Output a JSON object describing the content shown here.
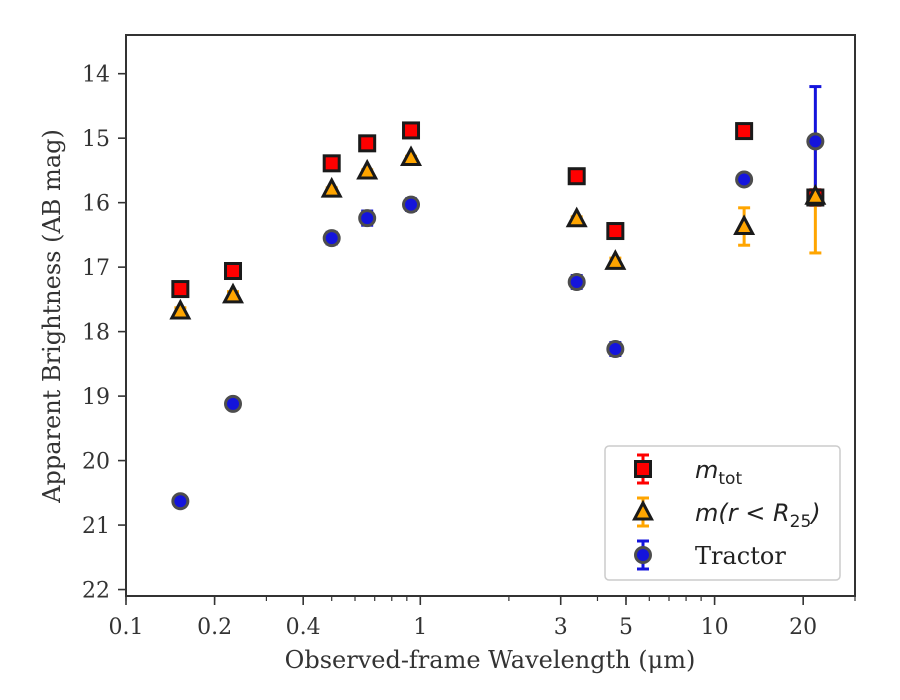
{
  "chart_data": {
    "type": "scatter",
    "xlabel": "Observed-frame Wavelength (μm)",
    "ylabel": "Apparent Brightness (AB mag)",
    "x_scale": "log",
    "xlim": [
      0.1,
      30
    ],
    "ylim": [
      22.1,
      13.4
    ],
    "y_inverted": true,
    "x_ticks": [
      0.1,
      0.2,
      0.4,
      1,
      3,
      5,
      10,
      20
    ],
    "x_tick_labels": [
      "0.1",
      "0.2",
      "0.4",
      "1",
      "3",
      "5",
      "10",
      "20"
    ],
    "y_ticks": [
      14,
      15,
      16,
      17,
      18,
      19,
      20,
      21,
      22
    ],
    "y_tick_labels": [
      "14",
      "15",
      "16",
      "17",
      "18",
      "19",
      "20",
      "21",
      "22"
    ],
    "grid": false,
    "legend_position": "bottom-right",
    "legend": [
      {
        "main": "m",
        "sub": "tot",
        "suffix": ""
      },
      {
        "main": "m(r < R",
        "sub": "25",
        "suffix": ")"
      },
      {
        "main": "Tractor",
        "sub": "",
        "suffix": ""
      }
    ],
    "series": [
      {
        "marker": "square",
        "color": "#ff0000",
        "edge_color": "#1a1a1a",
        "err_color": "#ff0000",
        "x": [
          0.153,
          0.231,
          0.5,
          0.66,
          0.93,
          3.4,
          4.6,
          12.6,
          22.0
        ],
        "y": [
          17.34,
          17.06,
          15.39,
          15.08,
          14.88,
          15.59,
          16.44,
          14.89,
          15.92
        ],
        "yerr": [
          0.05,
          0.05,
          0.02,
          0.02,
          0.02,
          0.03,
          0.04,
          0.05,
          0.12
        ]
      },
      {
        "marker": "triangle",
        "color": "#ffa500",
        "edge_color": "#1a1a1a",
        "err_color": "#ffa500",
        "x": [
          0.153,
          0.231,
          0.5,
          0.66,
          0.93,
          3.4,
          4.6,
          12.6,
          22.0
        ],
        "y": [
          17.68,
          17.43,
          15.79,
          15.51,
          15.3,
          16.25,
          16.91,
          16.37,
          15.9
        ],
        "yerr": [
          0.05,
          0.05,
          0.02,
          0.02,
          0.02,
          0.03,
          0.05,
          0.29,
          0.88
        ]
      },
      {
        "marker": "circle",
        "color": "#1414dc",
        "edge_color": "#4d4d4d",
        "err_color": "#1414dc",
        "x": [
          0.153,
          0.231,
          0.5,
          0.66,
          0.93,
          3.4,
          4.6,
          12.6,
          22.0
        ],
        "y": [
          20.63,
          19.12,
          16.55,
          16.24,
          16.03,
          17.23,
          18.27,
          15.64,
          15.05
        ],
        "yerr": [
          0.08,
          0.08,
          0.09,
          0.11,
          0.09,
          0.1,
          0.1,
          0.08,
          0.85
        ]
      }
    ]
  }
}
